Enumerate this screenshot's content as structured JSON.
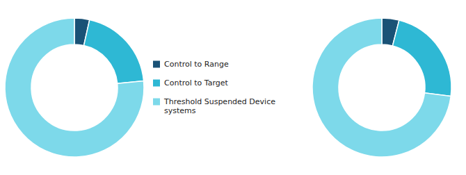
{
  "chart_data": [
    {
      "type": "pie",
      "categories": [
        "Control to Range",
        "Control to Target",
        "Threshold Suspended Device\nsystems"
      ],
      "values": [
        3.5,
        20.0,
        76.5
      ],
      "colors": [
        "#1a5276",
        "#2eb8d4",
        "#7dd9ea"
      ],
      "legend": "center"
    },
    {
      "type": "pie",
      "values": [
        4.0,
        23.0,
        73.0
      ],
      "colors": [
        "#1a5276",
        "#2eb8d4",
        "#7dd9ea"
      ]
    }
  ]
}
